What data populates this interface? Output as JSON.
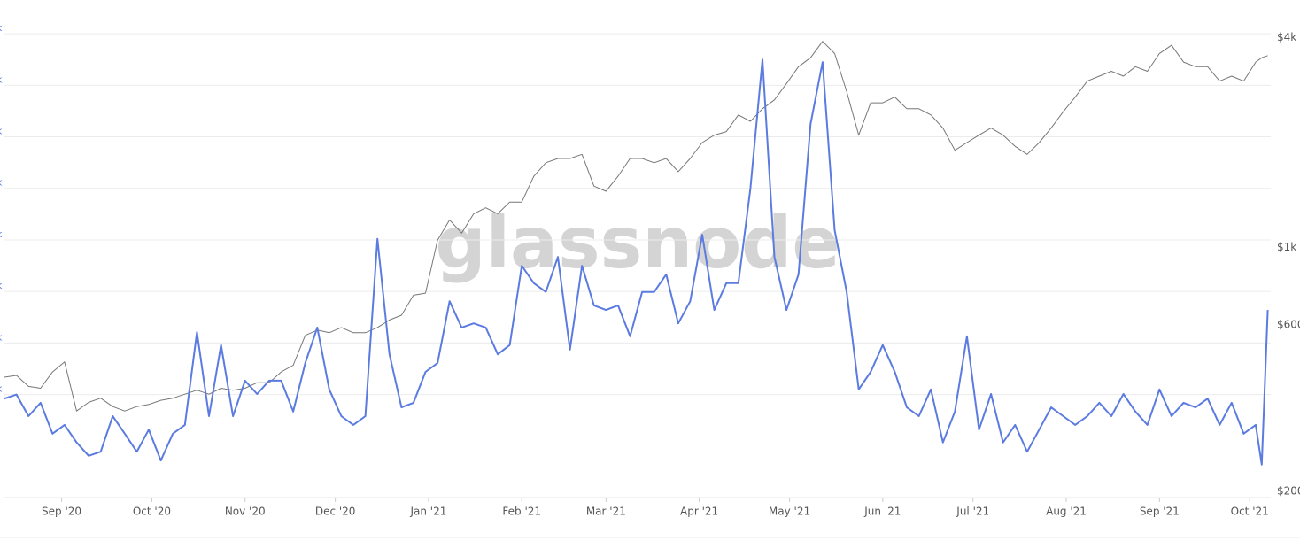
{
  "chart_data": {
    "type": "line",
    "watermark": "glassnode",
    "x": [
      0,
      4,
      8,
      12,
      16,
      20,
      24,
      28,
      32,
      36,
      40,
      44,
      48,
      52,
      56,
      60,
      64,
      68,
      72,
      76,
      80,
      84,
      88,
      92,
      96,
      100,
      104,
      108,
      112,
      116,
      120,
      124,
      128,
      132,
      136,
      140,
      144,
      148,
      152,
      156,
      160,
      164,
      168,
      172,
      176,
      180,
      184,
      188,
      192,
      196,
      200,
      204,
      208,
      212,
      216,
      220,
      224,
      228,
      232,
      236,
      240,
      244,
      248,
      252,
      256,
      260,
      264,
      268,
      272,
      276,
      280,
      284,
      288,
      292,
      296,
      300,
      304,
      308,
      312,
      316,
      320,
      324,
      328,
      332,
      336,
      340,
      344,
      348,
      352,
      356,
      360,
      364,
      368,
      372,
      376,
      380,
      384,
      388,
      392,
      396,
      400,
      404,
      408,
      412,
      416,
      418,
      420
    ],
    "xlim": [
      0,
      421
    ],
    "xticks": [
      {
        "value": 19,
        "label": "Sep '20"
      },
      {
        "value": 49,
        "label": "Oct '20"
      },
      {
        "value": 80,
        "label": "Nov '20"
      },
      {
        "value": 110,
        "label": "Dec '20"
      },
      {
        "value": 141,
        "label": "Jan '21"
      },
      {
        "value": 172,
        "label": "Feb '21"
      },
      {
        "value": 200,
        "label": "Mar '21"
      },
      {
        "value": 231,
        "label": "Apr '21"
      },
      {
        "value": 261,
        "label": "May '21"
      },
      {
        "value": 292,
        "label": "Jun '21"
      },
      {
        "value": 322,
        "label": "Jul '21"
      },
      {
        "value": 353,
        "label": "Aug '21"
      },
      {
        "value": 384,
        "label": "Sep '21"
      },
      {
        "value": 414,
        "label": "Oct '21"
      }
    ],
    "ylim": [
      0,
      9.5
    ],
    "yticks": [
      {
        "value": 9,
        "label": "k"
      },
      {
        "value": 8,
        "label": "k"
      },
      {
        "value": 7,
        "label": "k"
      },
      {
        "value": 6,
        "label": "k"
      },
      {
        "value": 5,
        "label": "k"
      },
      {
        "value": 4,
        "label": "k"
      },
      {
        "value": 3,
        "label": "k"
      },
      {
        "value": 2,
        "label": "k"
      }
    ],
    "y2lim": [
      192,
      4860
    ],
    "y2log": true,
    "y2ticks": [
      {
        "value": 4000,
        "label": "$4k"
      },
      {
        "value": 1000,
        "label": "$1k"
      },
      {
        "value": 600,
        "label": "$600"
      },
      {
        "value": 200,
        "label": "$200"
      }
    ],
    "grid": true,
    "series": [
      {
        "color": "#5b7be0",
        "values": [
          1.92,
          2.0,
          1.58,
          1.84,
          1.24,
          1.41,
          1.07,
          0.81,
          0.89,
          1.58,
          1.24,
          0.89,
          1.32,
          0.72,
          1.24,
          1.41,
          3.21,
          1.58,
          2.96,
          1.58,
          2.27,
          2.01,
          2.27,
          2.27,
          1.67,
          2.61,
          3.3,
          2.1,
          1.58,
          1.41,
          1.58,
          5.02,
          2.78,
          1.75,
          1.84,
          2.44,
          2.61,
          3.81,
          3.3,
          3.38,
          3.3,
          2.78,
          2.96,
          4.5,
          4.16,
          3.99,
          4.67,
          2.87,
          4.5,
          3.73,
          3.64,
          3.73,
          3.13,
          3.99,
          3.99,
          4.33,
          3.38,
          3.81,
          5.1,
          3.64,
          4.16,
          4.16,
          6.0,
          8.5,
          4.67,
          3.64,
          4.33,
          7.25,
          8.45,
          5.19,
          3.99,
          2.1,
          2.44,
          2.96,
          2.44,
          1.75,
          1.58,
          2.1,
          1.07,
          1.67,
          3.13,
          1.32,
          2.01,
          1.07,
          1.41,
          0.89,
          1.32,
          1.75,
          1.58,
          1.41,
          1.58,
          1.84,
          1.58,
          2.01,
          1.67,
          1.41,
          2.1,
          1.58,
          1.84,
          1.75,
          1.92,
          1.41,
          1.84,
          1.24,
          1.41,
          0.64,
          3.64
        ]
      },
      {
        "color": "#777777",
        "axis": "y2",
        "values": [
          425,
          430,
          400,
          395,
          440,
          470,
          340,
          360,
          370,
          350,
          340,
          350,
          355,
          365,
          370,
          380,
          390,
          380,
          395,
          390,
          395,
          410,
          410,
          440,
          460,
          560,
          580,
          570,
          590,
          570,
          570,
          590,
          620,
          640,
          730,
          740,
          1050,
          1200,
          1100,
          1250,
          1300,
          1250,
          1350,
          1350,
          1600,
          1750,
          1800,
          1800,
          1850,
          1500,
          1450,
          1600,
          1800,
          1800,
          1750,
          1800,
          1650,
          1800,
          2000,
          2100,
          2150,
          2400,
          2300,
          2500,
          2650,
          2950,
          3300,
          3500,
          3900,
          3600,
          2800,
          2100,
          2600,
          2600,
          2700,
          2500,
          2500,
          2400,
          2200,
          1900,
          2000,
          2100,
          2200,
          2100,
          1950,
          1850,
          2000,
          2200,
          2450,
          2700,
          3000,
          3100,
          3200,
          3100,
          3300,
          3200,
          3600,
          3800,
          3400,
          3300,
          3300,
          3000,
          3100,
          3000,
          3400,
          3500,
          3550
        ]
      }
    ]
  }
}
